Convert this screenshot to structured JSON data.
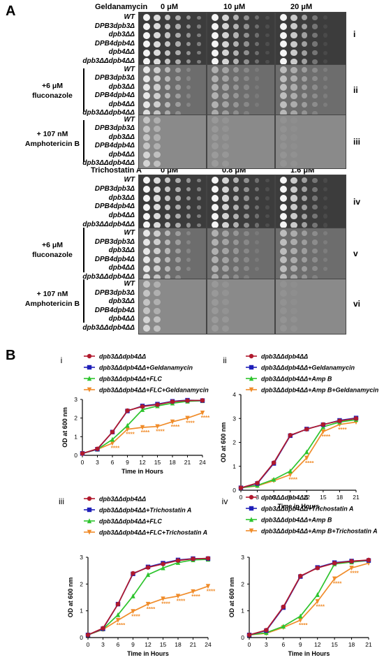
{
  "panelA": {
    "label": "A",
    "row_labels": [
      "i",
      "ii",
      "iii",
      "iv",
      "v",
      "vi"
    ],
    "strains": [
      "WT",
      "DPB3dpb3Δ",
      "dpb3ΔΔ",
      "DPB4dpb4Δ",
      "dpb4ΔΔ",
      "dpb3ΔΔdpb4ΔΔ"
    ],
    "geldanamycin": {
      "label": "Geldanamycin",
      "concs": [
        "0 μM",
        "10 μM",
        "20 μM"
      ]
    },
    "trichostatin": {
      "label": "Trichostatin A",
      "concs": [
        "0 μM",
        "0.8 μM",
        "1.6 μM"
      ]
    },
    "fluconazole": {
      "line1": "+6 μM",
      "line2": "fluconazole"
    },
    "amphotericin": {
      "line1": "+ 107 nM",
      "line2": "Amphotericin B"
    }
  },
  "panelB": {
    "label": "B"
  },
  "colors": {
    "red": "#b0192d",
    "blue": "#1f1fb8",
    "green": "#2ec42e",
    "orange": "#f08c2a"
  },
  "chart_data": [
    {
      "type": "line",
      "panel": "i",
      "legend": [
        "dpb3ΔΔdpb4ΔΔ",
        "dpb3ΔΔdpb4ΔΔ+Geldanamycin",
        "dpb3ΔΔdpb4ΔΔ+FLC",
        "dpb3ΔΔdpb4ΔΔ+FLC+Geldanamycin"
      ],
      "xlabel": "Time in Hours",
      "ylabel": "OD at 600 nm",
      "x": [
        0,
        3,
        6,
        9,
        12,
        15,
        18,
        21,
        24
      ],
      "xlim": [
        0,
        24
      ],
      "ylim": [
        0,
        3
      ],
      "xticks": [
        "0",
        "3",
        "6",
        "9",
        "12",
        "15",
        "18",
        "21",
        "24"
      ],
      "yticks": [
        "0",
        "1",
        "2",
        "3"
      ],
      "series": [
        {
          "values": [
            0.1,
            0.35,
            1.25,
            2.4,
            2.62,
            2.72,
            2.88,
            2.94,
            2.95
          ]
        },
        {
          "values": [
            0.1,
            0.33,
            1.25,
            2.38,
            2.65,
            2.75,
            2.9,
            2.96,
            2.94
          ]
        },
        {
          "values": [
            0.1,
            0.32,
            0.85,
            1.6,
            2.45,
            2.65,
            2.8,
            2.9,
            2.93
          ]
        },
        {
          "values": [
            0.1,
            0.32,
            0.65,
            1.4,
            1.5,
            1.55,
            1.8,
            2.0,
            2.28
          ]
        }
      ],
      "annotation": "****",
      "annotated_x": [
        6,
        9,
        12,
        15,
        18,
        21,
        24
      ]
    },
    {
      "type": "line",
      "panel": "ii",
      "legend": [
        "dpb3ΔΔdpb4ΔΔ",
        "dpb3ΔΔdpb4ΔΔ+Geldanamycin",
        "dpb3ΔΔdpb4ΔΔ+Amp B",
        "dpb3ΔΔdpb4ΔΔ+Amp B+Geldanamycin"
      ],
      "xlabel": "Time in Hours",
      "ylabel": "OD at 600 nm",
      "x": [
        0,
        3,
        6,
        9,
        12,
        15,
        18,
        21
      ],
      "xlim": [
        0,
        21
      ],
      "ylim": [
        0,
        4
      ],
      "xticks": [
        "0",
        "3",
        "6",
        "9",
        "12",
        "15",
        "18",
        "21"
      ],
      "yticks": [
        "0",
        "1",
        "2",
        "3",
        "4"
      ],
      "series": [
        {
          "values": [
            0.1,
            0.3,
            1.15,
            2.3,
            2.55,
            2.75,
            2.9,
            3.0
          ]
        },
        {
          "values": [
            0.1,
            0.28,
            1.12,
            2.28,
            2.56,
            2.74,
            2.92,
            3.02
          ]
        },
        {
          "values": [
            0.1,
            0.2,
            0.45,
            0.8,
            1.6,
            2.65,
            2.85,
            2.95
          ]
        },
        {
          "values": [
            0.1,
            0.18,
            0.4,
            0.65,
            1.35,
            2.45,
            2.75,
            2.85
          ]
        }
      ],
      "annotation": "****",
      "annotated_x": [
        9,
        12,
        15,
        18
      ]
    },
    {
      "type": "line",
      "panel": "iii",
      "legend": [
        "dpb3ΔΔdpb4ΔΔ",
        "dpb3ΔΔdpb4ΔΔ+Trichostatin A",
        "dpb3ΔΔdpb4ΔΔ+FLC",
        "dpb3ΔΔdpb4ΔΔ+FLC+Trichostatin A"
      ],
      "xlabel": "Time in Hours",
      "ylabel": "OD at 600 nm",
      "x": [
        0,
        3,
        6,
        9,
        12,
        15,
        18,
        21,
        24
      ],
      "xlim": [
        0,
        24
      ],
      "ylim": [
        0,
        3
      ],
      "xticks": [
        "0",
        "3",
        "6",
        "9",
        "12",
        "15",
        "18",
        "21",
        "24"
      ],
      "yticks": [
        "0",
        "1",
        "2",
        "3"
      ],
      "series": [
        {
          "values": [
            0.1,
            0.35,
            1.25,
            2.4,
            2.62,
            2.75,
            2.88,
            2.94,
            2.96
          ]
        },
        {
          "values": [
            0.1,
            0.33,
            1.25,
            2.38,
            2.64,
            2.78,
            2.9,
            2.95,
            2.95
          ]
        },
        {
          "values": [
            0.1,
            0.32,
            0.85,
            1.55,
            2.35,
            2.6,
            2.8,
            2.9,
            2.92
          ]
        },
        {
          "values": [
            0.1,
            0.3,
            0.65,
            0.98,
            1.25,
            1.45,
            1.55,
            1.72,
            1.92
          ]
        }
      ],
      "annotation": "****",
      "annotated_x": [
        6,
        9,
        12,
        15,
        18,
        21,
        24
      ]
    },
    {
      "type": "line",
      "panel": "iv",
      "legend": [
        "dpb3ΔΔdpb4ΔΔ",
        "dpb3ΔΔdpb4ΔΔ+Trichostatin A",
        "dpb3ΔΔdpb4ΔΔ+Amp B",
        "dpb3ΔΔdpb4ΔΔ+Amp B+Trichostatin A"
      ],
      "xlabel": "Time in Hours",
      "ylabel": "OD at 600 nm",
      "x": [
        0,
        3,
        6,
        9,
        12,
        15,
        18,
        21
      ],
      "xlim": [
        0,
        21
      ],
      "ylim": [
        0,
        3
      ],
      "xticks": [
        "0",
        "3",
        "6",
        "9",
        "12",
        "15",
        "18",
        "21"
      ],
      "yticks": [
        "0",
        "1",
        "2",
        "3"
      ],
      "series": [
        {
          "values": [
            0.1,
            0.28,
            1.15,
            2.3,
            2.6,
            2.78,
            2.85,
            2.9
          ]
        },
        {
          "values": [
            0.1,
            0.26,
            1.12,
            2.28,
            2.62,
            2.8,
            2.86,
            2.88
          ]
        },
        {
          "values": [
            0.1,
            0.18,
            0.42,
            0.8,
            1.6,
            2.75,
            2.82,
            2.88
          ]
        },
        {
          "values": [
            0.1,
            0.16,
            0.38,
            0.65,
            1.35,
            2.2,
            2.6,
            2.78
          ]
        }
      ],
      "annotation": "****",
      "annotated_x": [
        9,
        12,
        15,
        18
      ]
    }
  ]
}
